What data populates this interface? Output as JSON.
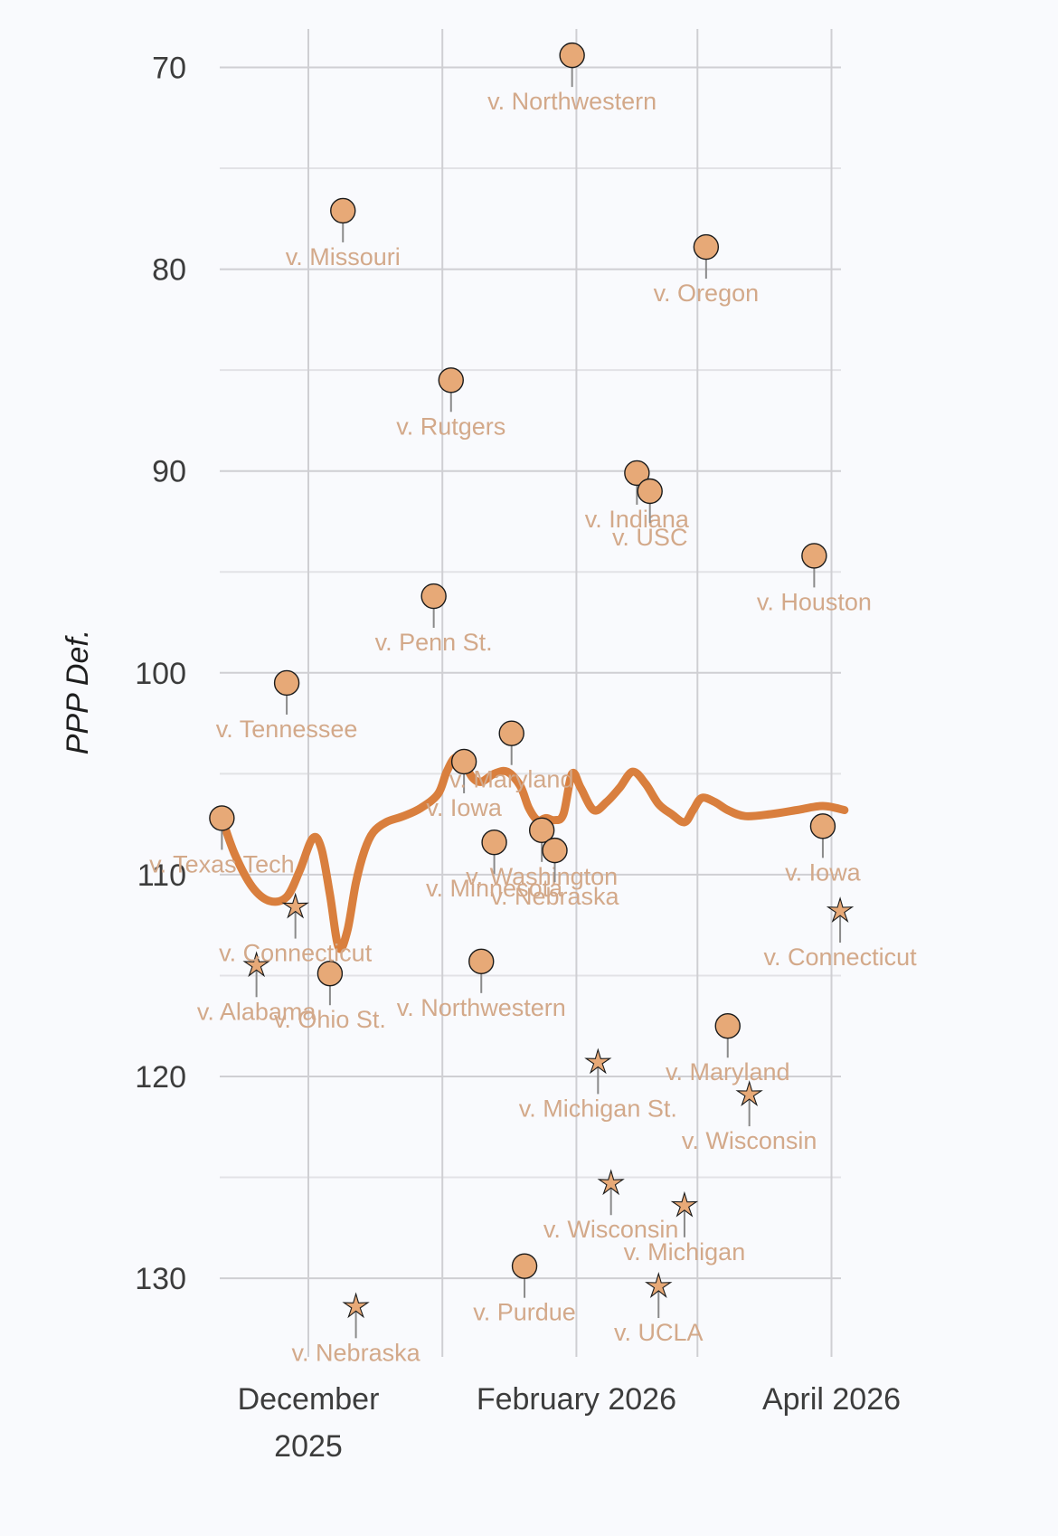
{
  "chart_data": {
    "type": "scatter",
    "xlabel": "",
    "ylabel": "PPP Def.",
    "ylim": [
      68,
      135
    ],
    "y_inverted": true,
    "y_ticks": [
      70,
      80,
      90,
      100,
      110,
      120,
      130
    ],
    "y_tick_labels": [
      "70",
      "80",
      "90",
      "100",
      "110",
      "120",
      "130"
    ],
    "x_ticks": [
      "2025-12-01",
      "2026-01-01",
      "2026-02-01",
      "2026-03-01",
      "2026-04-01"
    ],
    "x_tick_labels": [
      {
        "date": "2025-12-01",
        "lines": [
          "December",
          "2025"
        ]
      },
      {
        "date": "2026-02-01",
        "lines": [
          "February 2026"
        ]
      },
      {
        "date": "2026-04-01",
        "lines": [
          "April 2026"
        ]
      }
    ],
    "grid": true,
    "colors": {
      "points": "#e7a977",
      "trend": "#d97f3e",
      "labels": "#d3a98a"
    },
    "series": [
      {
        "marker": "circle",
        "points": [
          {
            "date": "2025-11-11",
            "y": 107.2,
            "label": "v. Texas Tech"
          },
          {
            "date": "2025-11-26",
            "y": 100.5,
            "label": "v. Tennessee"
          },
          {
            "date": "2025-12-06",
            "y": 114.9,
            "label": "v. Ohio St."
          },
          {
            "date": "2025-12-09",
            "y": 77.1,
            "label": "v. Missouri"
          },
          {
            "date": "2025-12-30",
            "y": 96.2,
            "label": "v. Penn St."
          },
          {
            "date": "2026-01-03",
            "y": 85.5,
            "label": "v. Rutgers"
          },
          {
            "date": "2026-01-06",
            "y": 104.4,
            "label": "v. Iowa"
          },
          {
            "date": "2026-01-10",
            "y": 114.3,
            "label": "v. Northwestern"
          },
          {
            "date": "2026-01-13",
            "y": 108.4,
            "label": "v. Minnesota"
          },
          {
            "date": "2026-01-17",
            "y": 103.0,
            "label": "v. Maryland"
          },
          {
            "date": "2026-01-20",
            "y": 129.4,
            "label": "v. Purdue"
          },
          {
            "date": "2026-01-24",
            "y": 107.8,
            "label": "v. Washington"
          },
          {
            "date": "2026-01-27",
            "y": 108.8,
            "label": "v. Nebraska"
          },
          {
            "date": "2026-01-31",
            "y": 69.4,
            "label": "v. Northwestern"
          },
          {
            "date": "2026-02-15",
            "y": 90.1,
            "label": "v. Indiana"
          },
          {
            "date": "2026-02-18",
            "y": 91.0,
            "label": "v. USC"
          },
          {
            "date": "2026-03-03",
            "y": 78.9,
            "label": "v. Oregon"
          },
          {
            "date": "2026-03-08",
            "y": 117.5,
            "label": "v. Maryland"
          },
          {
            "date": "2026-03-28",
            "y": 94.2,
            "label": "v. Houston"
          },
          {
            "date": "2026-03-30",
            "y": 107.6,
            "label": "v. Iowa"
          }
        ]
      },
      {
        "marker": "star",
        "points": [
          {
            "date": "2025-11-19",
            "y": 114.5,
            "label": "v. Alabama"
          },
          {
            "date": "2025-11-28",
            "y": 111.6,
            "label": "v. Connecticut"
          },
          {
            "date": "2025-12-12",
            "y": 131.4,
            "label": "v. Nebraska"
          },
          {
            "date": "2026-02-06",
            "y": 119.3,
            "label": "v. Michigan St."
          },
          {
            "date": "2026-02-09",
            "y": 125.3,
            "label": "v. Wisconsin"
          },
          {
            "date": "2026-02-20",
            "y": 130.4,
            "label": "v. UCLA"
          },
          {
            "date": "2026-02-26",
            "y": 126.4,
            "label": "v. Michigan"
          },
          {
            "date": "2026-03-13",
            "y": 120.9,
            "label": "v. Wisconsin"
          },
          {
            "date": "2026-04-03",
            "y": 111.8,
            "label": "v. Connecticut"
          }
        ]
      }
    ],
    "trend": {
      "dates": [
        "2025-11-11",
        "2025-11-14",
        "2025-11-18",
        "2025-11-22",
        "2025-11-26",
        "2025-11-29",
        "2025-12-02",
        "2025-12-04",
        "2025-12-06",
        "2025-12-08",
        "2025-12-10",
        "2025-12-12",
        "2025-12-14",
        "2025-12-16",
        "2025-12-19",
        "2025-12-23",
        "2025-12-27",
        "2025-12-31",
        "2026-01-02",
        "2026-01-04",
        "2026-01-06",
        "2026-01-08",
        "2026-01-10",
        "2026-01-13",
        "2026-01-16",
        "2026-01-19",
        "2026-01-21",
        "2026-01-23",
        "2026-01-25",
        "2026-01-27",
        "2026-01-29",
        "2026-01-31",
        "2026-02-02",
        "2026-02-05",
        "2026-02-08",
        "2026-02-11",
        "2026-02-14",
        "2026-02-17",
        "2026-02-20",
        "2026-02-23",
        "2026-02-26",
        "2026-02-28",
        "2026-03-02",
        "2026-03-05",
        "2026-03-08",
        "2026-03-12",
        "2026-03-18",
        "2026-03-24",
        "2026-03-30",
        "2026-04-04"
      ],
      "y": [
        107.2,
        109.0,
        110.6,
        111.3,
        111.1,
        109.8,
        108.2,
        108.7,
        111.0,
        113.6,
        112.8,
        110.4,
        108.8,
        107.9,
        107.4,
        107.1,
        106.7,
        106.0,
        104.9,
        104.2,
        104.5,
        105.2,
        105.4,
        105.0,
        104.9,
        105.6,
        106.7,
        107.3,
        107.2,
        107.3,
        107.0,
        105.0,
        105.7,
        106.8,
        106.4,
        105.7,
        104.9,
        105.5,
        106.5,
        107.0,
        107.4,
        106.8,
        106.2,
        106.4,
        106.8,
        107.1,
        107.0,
        106.8,
        106.6,
        106.8
      ]
    }
  }
}
